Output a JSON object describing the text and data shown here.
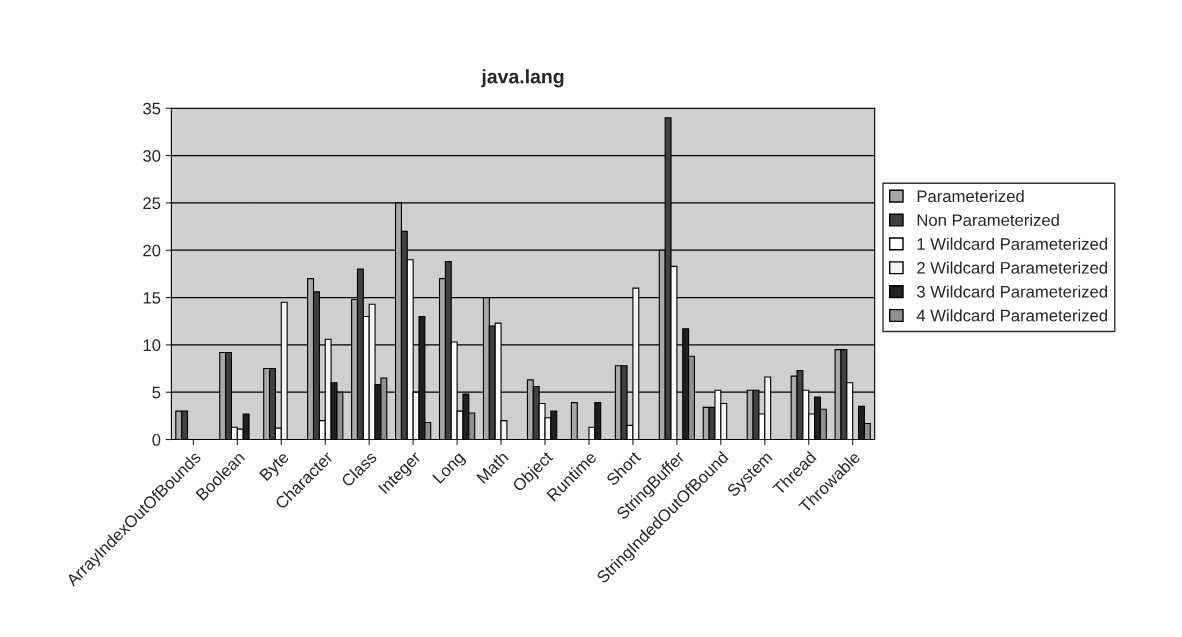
{
  "chart_data": {
    "type": "bar",
    "title": "java.lang",
    "categories": [
      "ArrayIndexOutOfBounds",
      "Boolean",
      "Byte",
      "Character",
      "Class",
      "Integer",
      "Long",
      "Math",
      "Object",
      "Runtime",
      "Short",
      "StringBuffer",
      "StringIndedOutOfBound",
      "System",
      "Thread",
      "Throwable"
    ],
    "series": [
      {
        "name": "Parameterized",
        "color": "#a8a8a8",
        "values": [
          3,
          9.2,
          7.5,
          17,
          14.8,
          25,
          17,
          15,
          6.3,
          3.9,
          7.8,
          20,
          3.4,
          5.2,
          6.7,
          9.5
        ]
      },
      {
        "name": "Non Parameterized",
        "color": "#404040",
        "values": [
          3,
          9.2,
          7.5,
          15.6,
          18,
          22,
          18.8,
          12,
          5.6,
          null,
          7.8,
          34,
          3.4,
          5.2,
          7.3,
          9.5
        ]
      },
      {
        "name": "1 Wildcard Parameterized",
        "color": "#ffffff",
        "values": [
          null,
          1.3,
          1.2,
          2,
          13,
          19,
          10.3,
          12.3,
          3.8,
          null,
          1.5,
          18.3,
          5.2,
          2.7,
          5.2,
          6
        ]
      },
      {
        "name": "2 Wildcard Parameterized",
        "color": "#f4f4f4",
        "values": [
          null,
          1.1,
          14.5,
          10.6,
          14.3,
          5,
          3,
          2,
          2.3,
          1.3,
          16,
          null,
          3.8,
          6.6,
          2.7,
          null
        ]
      },
      {
        "name": "3 Wildcard Parameterized",
        "color": "#202020",
        "values": [
          null,
          2.7,
          null,
          6,
          5.8,
          13,
          4.8,
          null,
          3,
          3.9,
          null,
          11.7,
          null,
          null,
          4.5,
          3.5
        ]
      },
      {
        "name": "4 Wildcard Parameterized",
        "color": "#909090",
        "values": [
          null,
          null,
          null,
          5,
          6.5,
          1.8,
          2.8,
          null,
          null,
          null,
          null,
          8.8,
          null,
          null,
          3.2,
          1.7
        ]
      }
    ],
    "ylim": [
      0,
      35
    ],
    "yticks": [
      0,
      5,
      10,
      15,
      20,
      25,
      30,
      35
    ],
    "grid": "y",
    "legend": "right"
  }
}
